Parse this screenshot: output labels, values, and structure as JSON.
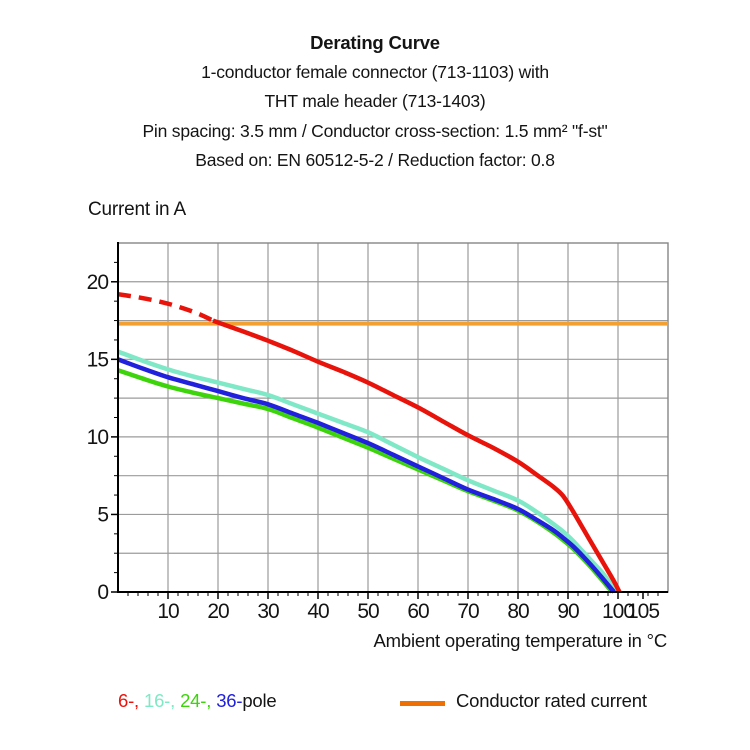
{
  "header": {
    "lines": [
      "Derating Curve",
      "1-conductor female connector (713-1103) with",
      "THT male header (713-1403)",
      "Pin spacing: 3.5 mm / Conductor cross-section: 1.5 mm² \"f-st\"",
      "Based on: EN 60512-5-2 / Reduction factor: 0.8"
    ]
  },
  "chart_data": {
    "type": "line",
    "title": "Derating Curve",
    "xlabel": "Ambient operating temperature in °C",
    "ylabel": "Current in A",
    "xlim": [
      0,
      110
    ],
    "ylim": [
      0,
      22.5
    ],
    "x_major_ticks": [
      10,
      20,
      30,
      40,
      50,
      60,
      70,
      80,
      90,
      100,
      105
    ],
    "x_minor_step": 2,
    "y_major_ticks": [
      0,
      5,
      10,
      15,
      20
    ],
    "y_minor_step": 1.25,
    "grid": {
      "x_step": 10,
      "y_step": 2.5,
      "color": "#9b9b9b",
      "border_color": "#858585"
    },
    "legend_position": "bottom",
    "series": [
      {
        "name": "Conductor rated current",
        "color": "#f2a031",
        "z": 1,
        "width": 4,
        "points": [
          [
            0,
            17.3
          ],
          [
            110,
            17.3
          ]
        ]
      },
      {
        "name": "24-pole",
        "color": "#3dd40b",
        "z": 2,
        "width": 4.5,
        "points": [
          [
            0,
            14.3
          ],
          [
            5,
            13.75
          ],
          [
            10,
            13.25
          ],
          [
            15,
            12.85
          ],
          [
            20,
            12.5
          ],
          [
            25,
            12.15
          ],
          [
            30,
            11.8
          ],
          [
            35,
            11.2
          ],
          [
            40,
            10.6
          ],
          [
            45,
            9.95
          ],
          [
            50,
            9.3
          ],
          [
            55,
            8.6
          ],
          [
            60,
            7.9
          ],
          [
            65,
            7.2
          ],
          [
            70,
            6.5
          ],
          [
            75,
            5.9
          ],
          [
            80,
            5.25
          ],
          [
            84,
            4.5
          ],
          [
            87,
            3.85
          ],
          [
            89,
            3.35
          ],
          [
            91,
            2.8
          ],
          [
            93,
            2.15
          ],
          [
            95,
            1.45
          ],
          [
            97,
            0.7
          ],
          [
            98.8,
            0
          ]
        ]
      },
      {
        "name": "16-pole",
        "color": "#7fe8c6",
        "z": 3,
        "width": 4.5,
        "points": [
          [
            0,
            15.5
          ],
          [
            5,
            14.9
          ],
          [
            10,
            14.35
          ],
          [
            15,
            13.9
          ],
          [
            20,
            13.5
          ],
          [
            25,
            13.1
          ],
          [
            30,
            12.7
          ],
          [
            35,
            12.1
          ],
          [
            40,
            11.5
          ],
          [
            45,
            10.9
          ],
          [
            50,
            10.3
          ],
          [
            55,
            9.5
          ],
          [
            60,
            8.7
          ],
          [
            65,
            7.95
          ],
          [
            70,
            7.2
          ],
          [
            75,
            6.55
          ],
          [
            80,
            5.9
          ],
          [
            84,
            5.1
          ],
          [
            87,
            4.4
          ],
          [
            89,
            3.9
          ],
          [
            91,
            3.3
          ],
          [
            93,
            2.6
          ],
          [
            95,
            1.9
          ],
          [
            97,
            1.2
          ],
          [
            99,
            0.3
          ],
          [
            99.6,
            0
          ]
        ]
      },
      {
        "name": "36-pole",
        "color": "#2020dd",
        "z": 4,
        "width": 4.5,
        "points": [
          [
            0,
            15.0
          ],
          [
            5,
            14.4
          ],
          [
            10,
            13.85
          ],
          [
            15,
            13.4
          ],
          [
            20,
            12.95
          ],
          [
            25,
            12.5
          ],
          [
            30,
            12.1
          ],
          [
            35,
            11.5
          ],
          [
            40,
            10.9
          ],
          [
            45,
            10.25
          ],
          [
            50,
            9.6
          ],
          [
            55,
            8.85
          ],
          [
            60,
            8.1
          ],
          [
            65,
            7.35
          ],
          [
            70,
            6.6
          ],
          [
            75,
            6.0
          ],
          [
            80,
            5.35
          ],
          [
            84,
            4.6
          ],
          [
            87,
            4.0
          ],
          [
            89,
            3.5
          ],
          [
            91,
            2.95
          ],
          [
            93,
            2.3
          ],
          [
            95,
            1.6
          ],
          [
            97,
            0.85
          ],
          [
            99.2,
            0
          ]
        ]
      },
      {
        "name": "6-pole",
        "color": "#e8130b",
        "z": 5,
        "width": 4.5,
        "dash_until": 19,
        "dash_pattern": "13 8",
        "points": [
          [
            0,
            19.2
          ],
          [
            4,
            19.0
          ],
          [
            8,
            18.75
          ],
          [
            12,
            18.4
          ],
          [
            16,
            17.95
          ],
          [
            19,
            17.5
          ],
          [
            25,
            16.8
          ],
          [
            30,
            16.2
          ],
          [
            35,
            15.55
          ],
          [
            40,
            14.85
          ],
          [
            45,
            14.2
          ],
          [
            50,
            13.5
          ],
          [
            55,
            12.7
          ],
          [
            60,
            11.9
          ],
          [
            65,
            11.0
          ],
          [
            70,
            10.1
          ],
          [
            75,
            9.3
          ],
          [
            80,
            8.4
          ],
          [
            84,
            7.5
          ],
          [
            87,
            6.8
          ],
          [
            89,
            6.2
          ],
          [
            91,
            5.2
          ],
          [
            93,
            4.1
          ],
          [
            95,
            3.0
          ],
          [
            97,
            1.9
          ],
          [
            99,
            0.8
          ],
          [
            100.3,
            0
          ]
        ]
      }
    ]
  },
  "axis_labels": {
    "y": "Current in A",
    "x": "Ambient operating temperature in °C"
  },
  "legend": {
    "items": [
      {
        "label": "6-,",
        "color": "#e8130b"
      },
      {
        "label": "16-,",
        "color": "#7fe8c6"
      },
      {
        "label": "24-,",
        "color": "#3dd40b"
      },
      {
        "label": "36-",
        "color": "#2020dd"
      }
    ],
    "suffix": "pole",
    "rated_label": "Conductor rated current",
    "rated_color": "#ee7004"
  }
}
